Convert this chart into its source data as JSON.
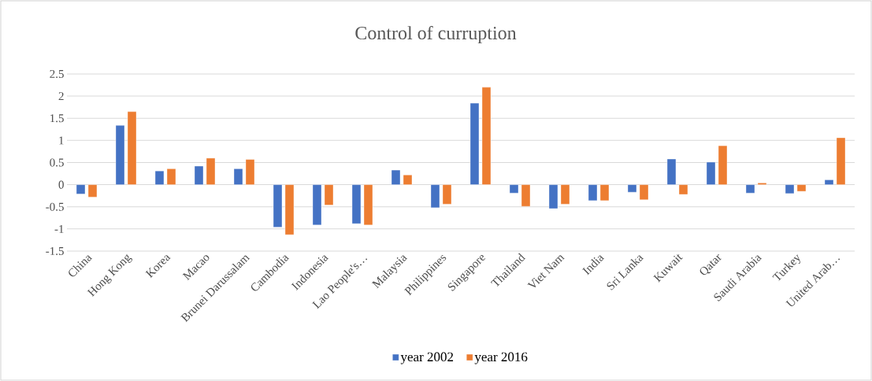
{
  "chart_data": {
    "type": "bar",
    "title": "Control of curruption",
    "categories": [
      "China",
      "Hong Kong",
      "Korea",
      "Macao",
      "Brunei Darussalam",
      "Cambodia",
      "Indonesia",
      "Lao People's…",
      "Malaysia",
      "Philippines",
      "Singapore",
      "Thailand",
      "Viet Nam",
      "India",
      "Sri Lanka",
      "Kuwait",
      "Qatar",
      "Saudi Arabia",
      "Turkey",
      "United Arab…"
    ],
    "series": [
      {
        "name": "year 2002",
        "color": "#4472c4",
        "values": [
          -0.21,
          1.34,
          0.31,
          0.42,
          0.36,
          -0.96,
          -0.91,
          -0.88,
          0.33,
          -0.52,
          1.84,
          -0.19,
          -0.54,
          -0.36,
          -0.17,
          0.58,
          0.51,
          -0.19,
          -0.2,
          0.11
        ]
      },
      {
        "name": "year 2016",
        "color": "#ed7d31",
        "values": [
          -0.28,
          1.65,
          0.36,
          0.6,
          0.57,
          -1.13,
          -0.46,
          -0.91,
          0.22,
          -0.44,
          2.2,
          -0.49,
          -0.44,
          -0.36,
          -0.34,
          -0.22,
          0.88,
          0.04,
          -0.15,
          1.06
        ]
      }
    ],
    "ylim": [
      -1.5,
      2.5
    ],
    "yticks": [
      -1.5,
      -1,
      -0.5,
      0,
      0.5,
      1,
      1.5,
      2,
      2.5
    ],
    "grid": "y",
    "legend": "bottom"
  }
}
